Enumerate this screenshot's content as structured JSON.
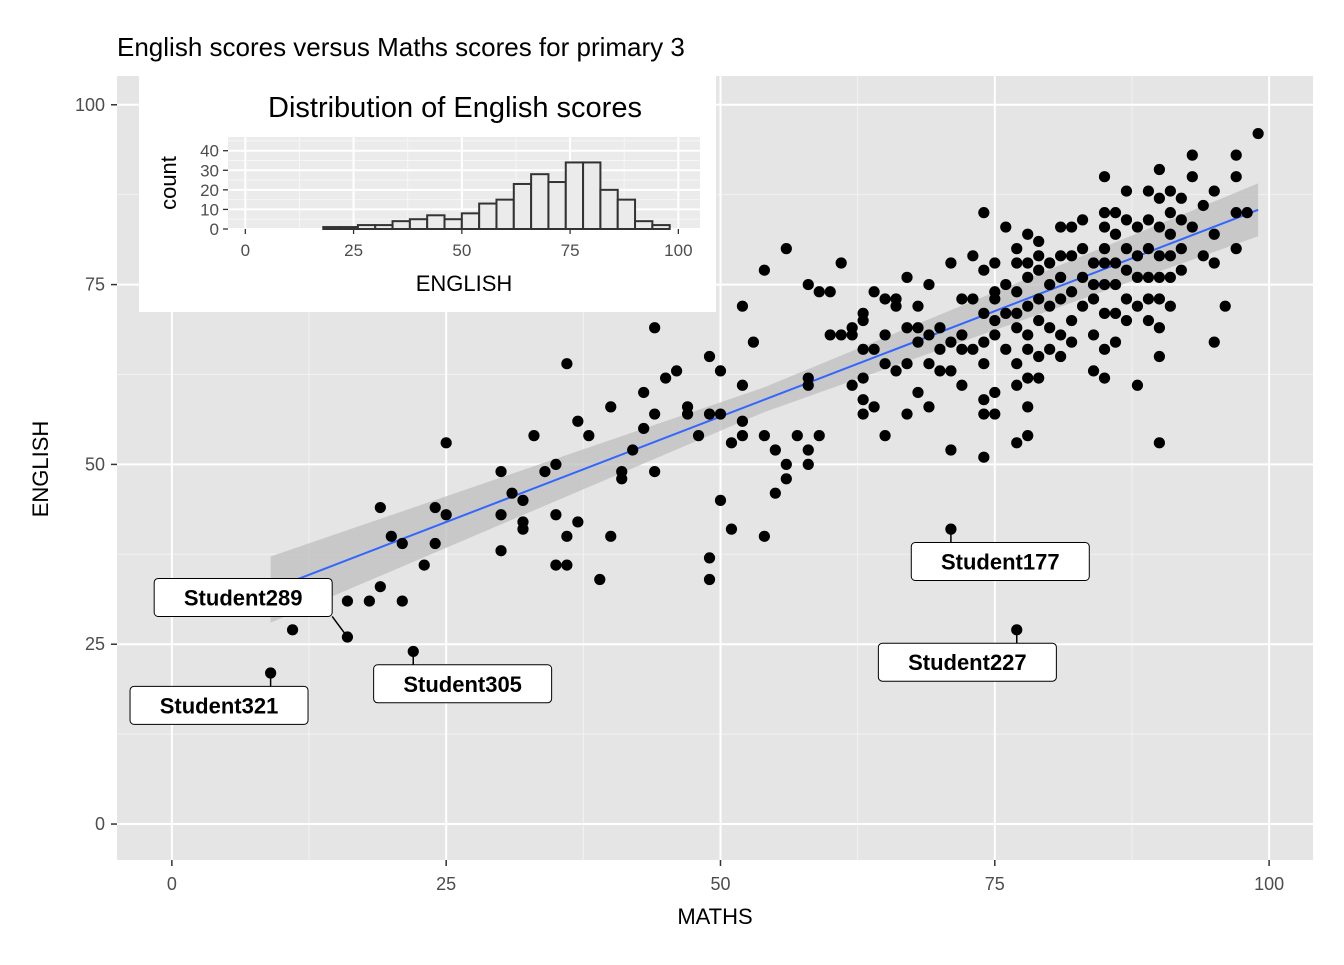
{
  "chart_data": [
    {
      "type": "scatter",
      "title": "English scores versus Maths scores for primary 3",
      "xlabel": "MATHS",
      "ylabel": "ENGLISH",
      "xlim": [
        -5,
        104
      ],
      "ylim": [
        -5,
        104
      ],
      "x_ticks": [
        "0",
        "25",
        "50",
        "75",
        "100"
      ],
      "y_ticks": [
        "0",
        "25",
        "50",
        "75",
        "100"
      ],
      "grid": true,
      "background": "#e5e5e5",
      "point_color": "#000000",
      "trend_line": {
        "color": "#3366ff",
        "x": [
          9,
          99
        ],
        "y": [
          32.6,
          85.4
        ],
        "ci_width": 2.3,
        "band_color": "#bdbdbd"
      },
      "points": [
        [
          9,
          21
        ],
        [
          11,
          27
        ],
        [
          16,
          31
        ],
        [
          16,
          26
        ],
        [
          18,
          31
        ],
        [
          19,
          33
        ],
        [
          19,
          44
        ],
        [
          20,
          40
        ],
        [
          21,
          39
        ],
        [
          21,
          31
        ],
        [
          22,
          24
        ],
        [
          23,
          36
        ],
        [
          24,
          44
        ],
        [
          24,
          39
        ],
        [
          25,
          43
        ],
        [
          25,
          53
        ],
        [
          30,
          49
        ],
        [
          30,
          43
        ],
        [
          30,
          38
        ],
        [
          31,
          46
        ],
        [
          32,
          45
        ],
        [
          32,
          41
        ],
        [
          32,
          42
        ],
        [
          33,
          54
        ],
        [
          34,
          49
        ],
        [
          35,
          50
        ],
        [
          35,
          43
        ],
        [
          35,
          36
        ],
        [
          36,
          36
        ],
        [
          36,
          40
        ],
        [
          36,
          64
        ],
        [
          37,
          56
        ],
        [
          37,
          42
        ],
        [
          38,
          54
        ],
        [
          39,
          34
        ],
        [
          40,
          58
        ],
        [
          40,
          40
        ],
        [
          41,
          49
        ],
        [
          41,
          48
        ],
        [
          42,
          52
        ],
        [
          43,
          55
        ],
        [
          43,
          60
        ],
        [
          44,
          69
        ],
        [
          44,
          49
        ],
        [
          44,
          57
        ],
        [
          45,
          62
        ],
        [
          46,
          63
        ],
        [
          47,
          58
        ],
        [
          47,
          57
        ],
        [
          48,
          54
        ],
        [
          49,
          65
        ],
        [
          49,
          57
        ],
        [
          49,
          37
        ],
        [
          49,
          34
        ],
        [
          50,
          63
        ],
        [
          50,
          57
        ],
        [
          50,
          45
        ],
        [
          51,
          53
        ],
        [
          51,
          41
        ],
        [
          52,
          61
        ],
        [
          52,
          56
        ],
        [
          52,
          54
        ],
        [
          52,
          72
        ],
        [
          53,
          67
        ],
        [
          54,
          77
        ],
        [
          54,
          54
        ],
        [
          54,
          40
        ],
        [
          55,
          52
        ],
        [
          55,
          46
        ],
        [
          56,
          50
        ],
        [
          56,
          48
        ],
        [
          56,
          80
        ],
        [
          57,
          54
        ],
        [
          58,
          75
        ],
        [
          58,
          62
        ],
        [
          58,
          61
        ],
        [
          58,
          52
        ],
        [
          58,
          50
        ],
        [
          59,
          74
        ],
        [
          59,
          54
        ],
        [
          60,
          74
        ],
        [
          60,
          68
        ],
        [
          61,
          78
        ],
        [
          61,
          68
        ],
        [
          62,
          69
        ],
        [
          62,
          61
        ],
        [
          62,
          68
        ],
        [
          63,
          71
        ],
        [
          63,
          70
        ],
        [
          63,
          66
        ],
        [
          63,
          62
        ],
        [
          63,
          59
        ],
        [
          63,
          57
        ],
        [
          64,
          74
        ],
        [
          64,
          66
        ],
        [
          64,
          58
        ],
        [
          65,
          73
        ],
        [
          65,
          68
        ],
        [
          65,
          64
        ],
        [
          65,
          54
        ],
        [
          66,
          72
        ],
        [
          66,
          73
        ],
        [
          66,
          63
        ],
        [
          67,
          57
        ],
        [
          67,
          64
        ],
        [
          67,
          69
        ],
        [
          67,
          76
        ],
        [
          68,
          69
        ],
        [
          68,
          72
        ],
        [
          68,
          60
        ],
        [
          68,
          67
        ],
        [
          69,
          75
        ],
        [
          69,
          68
        ],
        [
          69,
          58
        ],
        [
          69,
          64
        ],
        [
          70,
          69
        ],
        [
          70,
          66
        ],
        [
          70,
          63
        ],
        [
          71,
          78
        ],
        [
          71,
          67
        ],
        [
          71,
          63
        ],
        [
          71,
          52
        ],
        [
          71,
          41
        ],
        [
          72,
          73
        ],
        [
          72,
          66
        ],
        [
          72,
          61
        ],
        [
          72,
          68
        ],
        [
          73,
          79
        ],
        [
          73,
          73
        ],
        [
          73,
          66
        ],
        [
          74,
          85
        ],
        [
          74,
          77
        ],
        [
          74,
          71
        ],
        [
          74,
          67
        ],
        [
          74,
          64
        ],
        [
          74,
          59
        ],
        [
          74,
          57
        ],
        [
          74,
          51
        ],
        [
          75,
          73
        ],
        [
          75,
          78
        ],
        [
          75,
          74
        ],
        [
          75,
          70
        ],
        [
          75,
          68
        ],
        [
          75,
          60
        ],
        [
          75,
          57
        ],
        [
          76,
          83
        ],
        [
          76,
          75
        ],
        [
          76,
          71
        ],
        [
          76,
          66
        ],
        [
          77,
          80
        ],
        [
          77,
          78
        ],
        [
          77,
          74
        ],
        [
          77,
          71
        ],
        [
          77,
          69
        ],
        [
          77,
          64
        ],
        [
          77,
          61
        ],
        [
          77,
          53
        ],
        [
          77,
          27
        ],
        [
          78,
          82
        ],
        [
          78,
          78
        ],
        [
          78,
          76
        ],
        [
          78,
          72
        ],
        [
          78,
          68
        ],
        [
          78,
          66
        ],
        [
          78,
          62
        ],
        [
          78,
          58
        ],
        [
          78,
          54
        ],
        [
          79,
          81
        ],
        [
          79,
          79
        ],
        [
          79,
          77
        ],
        [
          79,
          73
        ],
        [
          79,
          70
        ],
        [
          79,
          65
        ],
        [
          79,
          62
        ],
        [
          80,
          78
        ],
        [
          80,
          75
        ],
        [
          80,
          72
        ],
        [
          80,
          69
        ],
        [
          80,
          66
        ],
        [
          81,
          83
        ],
        [
          81,
          79
        ],
        [
          81,
          76
        ],
        [
          81,
          73
        ],
        [
          81,
          68
        ],
        [
          81,
          65
        ],
        [
          82,
          83
        ],
        [
          82,
          79
        ],
        [
          82,
          74
        ],
        [
          82,
          70
        ],
        [
          82,
          67
        ],
        [
          83,
          84
        ],
        [
          83,
          80
        ],
        [
          83,
          76
        ],
        [
          83,
          72
        ],
        [
          84,
          78
        ],
        [
          84,
          75
        ],
        [
          84,
          73
        ],
        [
          84,
          68
        ],
        [
          84,
          63
        ],
        [
          85,
          90
        ],
        [
          85,
          85
        ],
        [
          85,
          83
        ],
        [
          85,
          80
        ],
        [
          85,
          78
        ],
        [
          85,
          75
        ],
        [
          85,
          71
        ],
        [
          85,
          66
        ],
        [
          85,
          62
        ],
        [
          86,
          85
        ],
        [
          86,
          82
        ],
        [
          86,
          78
        ],
        [
          86,
          75
        ],
        [
          86,
          71
        ],
        [
          86,
          67
        ],
        [
          87,
          88
        ],
        [
          87,
          84
        ],
        [
          87,
          80
        ],
        [
          87,
          77
        ],
        [
          87,
          73
        ],
        [
          87,
          70
        ],
        [
          88,
          83
        ],
        [
          88,
          79
        ],
        [
          88,
          76
        ],
        [
          88,
          72
        ],
        [
          88,
          61
        ],
        [
          89,
          88
        ],
        [
          89,
          84
        ],
        [
          89,
          80
        ],
        [
          89,
          76
        ],
        [
          89,
          73
        ],
        [
          89,
          70
        ],
        [
          90,
          91
        ],
        [
          90,
          87
        ],
        [
          90,
          83
        ],
        [
          90,
          79
        ],
        [
          90,
          76
        ],
        [
          90,
          73
        ],
        [
          90,
          69
        ],
        [
          90,
          65
        ],
        [
          90,
          53
        ],
        [
          91,
          88
        ],
        [
          91,
          85
        ],
        [
          91,
          82
        ],
        [
          91,
          79
        ],
        [
          91,
          76
        ],
        [
          91,
          72
        ],
        [
          92,
          87
        ],
        [
          92,
          84
        ],
        [
          92,
          80
        ],
        [
          92,
          77
        ],
        [
          93,
          93
        ],
        [
          93,
          90
        ],
        [
          93,
          83
        ],
        [
          94,
          86
        ],
        [
          94,
          79
        ],
        [
          95,
          88
        ],
        [
          95,
          82
        ],
        [
          95,
          78
        ],
        [
          95,
          67
        ],
        [
          96,
          72
        ],
        [
          97,
          93
        ],
        [
          97,
          90
        ],
        [
          97,
          85
        ],
        [
          97,
          80
        ],
        [
          98,
          85
        ],
        [
          99,
          96
        ]
      ],
      "labels": [
        {
          "text": "Student289",
          "x": 16,
          "y": 26,
          "lx": 6.5,
          "ly": 31.5
        },
        {
          "text": "Student321",
          "x": 9,
          "y": 21,
          "lx": 4.3,
          "ly": 16.5
        },
        {
          "text": "Student305",
          "x": 22,
          "y": 24,
          "lx": 26.5,
          "ly": 19.5
        },
        {
          "text": "Student177",
          "x": 71,
          "y": 41,
          "lx": 75.5,
          "ly": 36.5
        },
        {
          "text": "Student227",
          "x": 77,
          "y": 27,
          "lx": 72.5,
          "ly": 22.5
        }
      ]
    },
    {
      "type": "bar",
      "title": "Distribution of English scores",
      "xlabel": "ENGLISH",
      "ylabel": "count",
      "xlim": [
        -4,
        105
      ],
      "ylim": [
        0,
        47
      ],
      "x_ticks": [
        "0",
        "25",
        "50",
        "75",
        "100"
      ],
      "y_ticks": [
        "0",
        "10",
        "20",
        "30",
        "40"
      ],
      "bin_width": 4,
      "bins": [
        18,
        22,
        26,
        30,
        34,
        38,
        42,
        46,
        50,
        54,
        58,
        62,
        66,
        70,
        74,
        78,
        82,
        86,
        90,
        94
      ],
      "values": [
        1,
        1,
        2,
        2,
        4,
        5,
        7,
        5,
        8,
        13,
        15,
        23,
        28,
        24,
        34,
        34,
        20,
        15,
        4,
        2
      ],
      "fill": "#ebebeb",
      "stroke": "#333333"
    }
  ]
}
